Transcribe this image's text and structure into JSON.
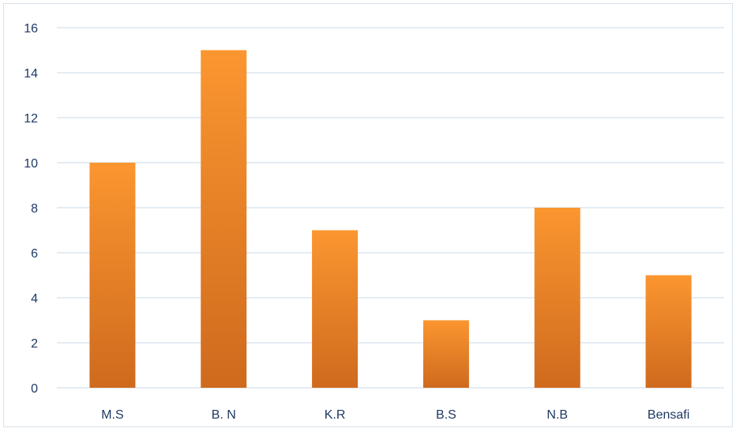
{
  "chart_data": {
    "type": "bar",
    "categories": [
      "M.S",
      "B. N",
      "K.R",
      "B.S",
      "N.B",
      "Bensafi"
    ],
    "values": [
      10,
      15,
      7,
      3,
      8,
      5
    ],
    "ylim": [
      0,
      16
    ],
    "yticks": [
      0,
      2,
      4,
      6,
      8,
      10,
      12,
      14,
      16
    ],
    "grid": true,
    "colors": {
      "bar_top": "#fb9630",
      "bar_bottom": "#cf6a1e",
      "grid": "#c9d8ea",
      "axis_text": "#1f3864"
    }
  }
}
